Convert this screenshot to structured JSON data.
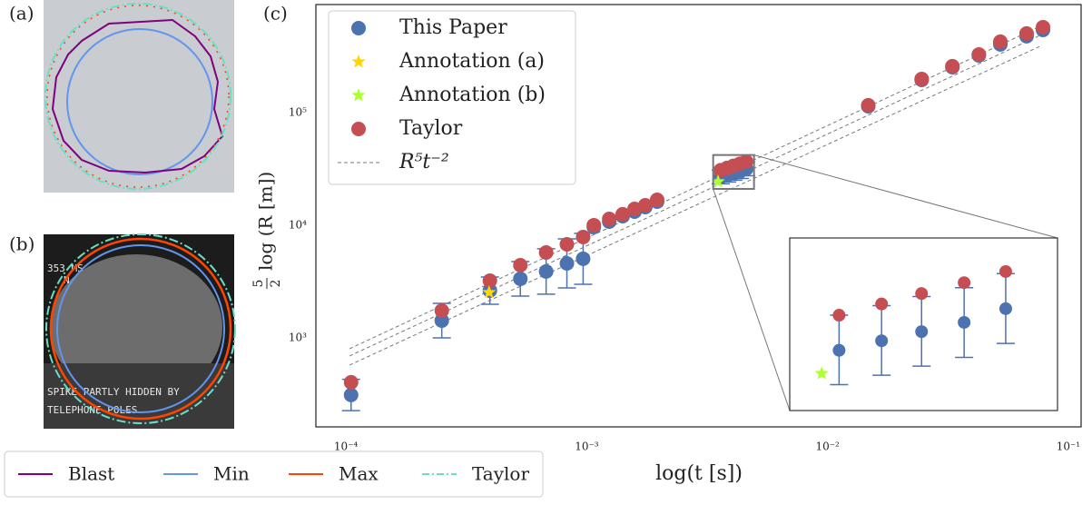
{
  "panels": {
    "a_label": "(a)",
    "b_label": "(b)",
    "b_text": [
      "353 MS",
      "N",
      "SPIKE  PARTLY  HIDDEN BY",
      "TELEPHONE POLES"
    ],
    "legend": [
      {
        "name": "Blast",
        "color": "#800080"
      },
      {
        "name": "Min",
        "color": "#6495ed"
      },
      {
        "name": "Max",
        "color": "#ff4500"
      },
      {
        "name": "Taylor",
        "color": "#66e0c8"
      }
    ]
  },
  "chart_data": {
    "type": "scatter",
    "panel_label": "(c)",
    "xlabel": "log(t [s])",
    "ylabel": "log (R [m])",
    "ylabel_numerator": "5",
    "ylabel_denominator": "2",
    "log_x": true,
    "log_y": true,
    "grid": false,
    "legend": "upper left",
    "xlim": [
      7.5e-05,
      0.113
    ],
    "ylim": [
      162,
      910000
    ],
    "xticks": [
      {
        "value": 0.0001,
        "label": "10⁻⁴"
      },
      {
        "value": 0.001,
        "label": "10⁻³"
      },
      {
        "value": 0.01,
        "label": "10⁻²"
      },
      {
        "value": 0.1,
        "label": "10⁻¹"
      }
    ],
    "yticks": [
      {
        "value": 1000,
        "label": "10³"
      },
      {
        "value": 10000,
        "label": "10⁴"
      },
      {
        "value": 100000,
        "label": "10⁵"
      }
    ],
    "inset": {
      "xlim": [
        0.00335,
        0.00495
      ],
      "ylim": [
        21000,
        42000
      ]
    },
    "series": [
      {
        "name": "This Paper",
        "color": "#4c72b0",
        "marker": "circle",
        "x": [
          0.000105,
          0.00025,
          0.000396,
          0.00053,
          0.000678,
          0.000827,
          0.000966,
          0.00107,
          0.00124,
          0.00141,
          0.00158,
          0.00175,
          0.00196,
          0.0036,
          0.00383,
          0.00406,
          0.00432,
          0.00459,
          0.01476,
          0.0246,
          0.033,
          0.0425,
          0.0522,
          0.0671,
          0.0785
        ],
        "values": [
          311,
          1423,
          2626,
          3343,
          3883,
          4580,
          5036,
          9630,
          10770,
          12040,
          13210,
          14500,
          16200,
          26750,
          27790,
          28830,
          29920,
          31620,
          113800,
          195000,
          253000,
          322000,
          403000,
          476000,
          542000
        ],
        "yerr_low": [
          226,
          1000,
          1987,
          2350,
          2440,
          2775,
          2990,
          null,
          null,
          null,
          null,
          null,
          null,
          23300,
          24200,
          25100,
          26000,
          27500,
          null,
          null,
          null,
          null,
          null,
          null,
          null
        ],
        "yerr_high": [
          428,
          2025,
          3471,
          4756,
          6180,
          7559,
          8482,
          null,
          null,
          null,
          null,
          null,
          null,
          30800,
          32000,
          33200,
          34400,
          36400,
          null,
          null,
          null,
          null,
          null,
          null,
          null
        ]
      },
      {
        "name": "Annotation (a)",
        "color": "#ffd700",
        "marker": "star",
        "x": [
          0.000393
        ],
        "values": [
          2531
        ]
      },
      {
        "name": "Annotation (b)",
        "color": "#adff2f",
        "marker": "star",
        "x": [
          0.00351
        ],
        "values": [
          24380
        ]
      },
      {
        "name": "Taylor",
        "color": "#c44e52",
        "marker": "circle",
        "x": [
          0.000105,
          0.00025,
          0.000396,
          0.00053,
          0.000678,
          0.000827,
          0.000966,
          0.00107,
          0.00124,
          0.00141,
          0.00158,
          0.00175,
          0.00196,
          0.0036,
          0.00383,
          0.00406,
          0.00432,
          0.00459,
          0.01476,
          0.0246,
          0.033,
          0.0425,
          0.0522,
          0.0671,
          0.0785
        ],
        "values": [
          403,
          1746,
          3221,
          4416,
          5728,
          6770,
          7855,
          10000,
          11380,
          12500,
          13970,
          15040,
          16810,
          30800,
          32220,
          33600,
          35100,
          36700,
          116100,
          198700,
          257800,
          328000,
          425900,
          503500,
          572700
        ]
      },
      {
        "name": "R⁵t⁻²",
        "color": "#777777",
        "marker": "dashed",
        "x": [
          0.0001035,
          0.0778
        ],
        "values": [
          [
            800,
            594000
          ],
          [
            690,
            494000
          ],
          [
            573,
            395000
          ]
        ]
      }
    ]
  }
}
